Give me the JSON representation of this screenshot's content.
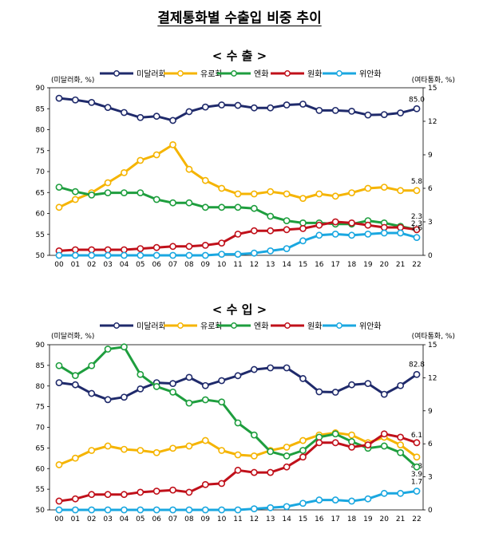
{
  "title": "결제통화별 수출입 비중 추이",
  "chart_data": [
    {
      "type": "line",
      "title": "< 수   출 >",
      "left_axis_label": "(미달러화, %)",
      "right_axis_label": "(여타통화, %)",
      "ylim_left": [
        50,
        90
      ],
      "ylim_right": [
        0,
        15
      ],
      "yticks_left": [
        50,
        55,
        60,
        65,
        70,
        75,
        80,
        85,
        90
      ],
      "yticks_right": [
        0,
        3,
        6,
        9,
        12,
        15
      ],
      "categories": [
        "00",
        "01",
        "02",
        "03",
        "04",
        "05",
        "06",
        "07",
        "08",
        "09",
        "10",
        "11",
        "12",
        "13",
        "14",
        "15",
        "16",
        "17",
        "18",
        "19",
        "20",
        "21",
        "22"
      ],
      "series": [
        {
          "name": "미달러화",
          "axis": "left",
          "color": "#1f2a6b",
          "end_label": "85.0",
          "values": [
            87.5,
            87.1,
            86.5,
            85.3,
            84.1,
            82.9,
            83.2,
            82.2,
            84.3,
            85.4,
            85.9,
            85.8,
            85.2,
            85.2,
            85.9,
            86.1,
            84.6,
            84.6,
            84.4,
            83.5,
            83.6,
            84.0,
            85.0
          ]
        },
        {
          "name": "유로화",
          "axis": "right",
          "color": "#f5b400",
          "end_label": "5.8",
          "values": [
            4.3,
            5.0,
            5.6,
            6.5,
            7.4,
            8.5,
            9.0,
            9.9,
            7.7,
            6.7,
            6.0,
            5.5,
            5.5,
            5.7,
            5.5,
            5.1,
            5.5,
            5.3,
            5.6,
            6.0,
            6.1,
            5.8,
            5.8
          ]
        },
        {
          "name": "엔화",
          "axis": "right",
          "color": "#1e9e3e",
          "end_label": "2.3",
          "values": [
            6.1,
            5.7,
            5.4,
            5.6,
            5.6,
            5.6,
            5.0,
            4.7,
            4.7,
            4.3,
            4.3,
            4.3,
            4.2,
            3.5,
            3.1,
            2.9,
            2.9,
            2.8,
            2.8,
            3.1,
            2.9,
            2.6,
            2.3
          ]
        },
        {
          "name": "원화",
          "axis": "right",
          "color": "#c0101a",
          "end_label": "2.3",
          "values": [
            0.4,
            0.5,
            0.5,
            0.5,
            0.5,
            0.6,
            0.7,
            0.8,
            0.8,
            0.9,
            1.1,
            1.9,
            2.2,
            2.2,
            2.3,
            2.4,
            2.7,
            3.0,
            2.9,
            2.7,
            2.5,
            2.5,
            2.3
          ]
        },
        {
          "name": "위안화",
          "axis": "right",
          "color": "#1aa7e0",
          "end_label": "1.6",
          "values": [
            0.0,
            0.0,
            0.0,
            0.0,
            0.0,
            0.0,
            0.0,
            0.0,
            0.0,
            0.0,
            0.1,
            0.1,
            0.2,
            0.4,
            0.6,
            1.3,
            1.8,
            1.9,
            1.8,
            1.9,
            2.0,
            2.0,
            1.6
          ]
        }
      ]
    },
    {
      "type": "line",
      "title": "< 수   입 >",
      "left_axis_label": "(미달러화, %)",
      "right_axis_label": "(여타통화, %)",
      "ylim_left": [
        50,
        90
      ],
      "ylim_right": [
        0,
        15
      ],
      "yticks_left": [
        50,
        55,
        60,
        65,
        70,
        75,
        80,
        85,
        90
      ],
      "yticks_right": [
        0,
        3,
        6,
        9,
        12,
        15
      ],
      "categories": [
        "00",
        "01",
        "02",
        "03",
        "04",
        "05",
        "06",
        "07",
        "08",
        "09",
        "10",
        "11",
        "12",
        "13",
        "14",
        "15",
        "16",
        "17",
        "18",
        "19",
        "20",
        "21",
        "22"
      ],
      "series": [
        {
          "name": "미달러화",
          "axis": "left",
          "color": "#1f2a6b",
          "end_label": "82.8",
          "values": [
            80.8,
            80.3,
            78.2,
            76.7,
            77.3,
            79.3,
            80.8,
            80.6,
            82.1,
            80.1,
            81.3,
            82.5,
            84.0,
            84.4,
            84.4,
            81.8,
            78.6,
            78.5,
            80.3,
            80.6,
            78.0,
            80.1,
            82.8
          ]
        },
        {
          "name": "유로화",
          "axis": "right",
          "color": "#f5b400",
          "end_label": "4.8",
          "values": [
            4.1,
            4.7,
            5.4,
            5.8,
            5.5,
            5.4,
            5.2,
            5.6,
            5.8,
            6.3,
            5.4,
            5.0,
            4.9,
            5.4,
            5.7,
            6.3,
            6.8,
            7.0,
            6.8,
            6.1,
            6.6,
            5.9,
            4.8
          ]
        },
        {
          "name": "엔화",
          "axis": "right",
          "color": "#1e9e3e",
          "end_label": "3.9",
          "values": [
            13.1,
            12.2,
            13.1,
            14.6,
            14.8,
            12.3,
            11.2,
            10.7,
            9.7,
            10.0,
            9.8,
            7.9,
            6.8,
            5.3,
            4.9,
            5.4,
            6.6,
            6.9,
            6.2,
            5.6,
            5.8,
            5.2,
            3.9
          ]
        },
        {
          "name": "원화",
          "axis": "right",
          "color": "#c0101a",
          "end_label": "6.1",
          "values": [
            0.8,
            1.0,
            1.4,
            1.4,
            1.4,
            1.6,
            1.7,
            1.8,
            1.6,
            2.3,
            2.4,
            3.6,
            3.4,
            3.4,
            3.9,
            4.8,
            6.1,
            6.1,
            5.7,
            5.9,
            6.9,
            6.6,
            6.1
          ]
        },
        {
          "name": "위안화",
          "axis": "right",
          "color": "#1aa7e0",
          "end_label": "1.7",
          "values": [
            0.0,
            0.0,
            0.0,
            0.0,
            0.0,
            0.0,
            0.0,
            0.0,
            0.0,
            0.0,
            0.0,
            0.0,
            0.1,
            0.2,
            0.3,
            0.6,
            0.9,
            0.9,
            0.8,
            1.0,
            1.5,
            1.5,
            1.7
          ]
        }
      ]
    }
  ]
}
